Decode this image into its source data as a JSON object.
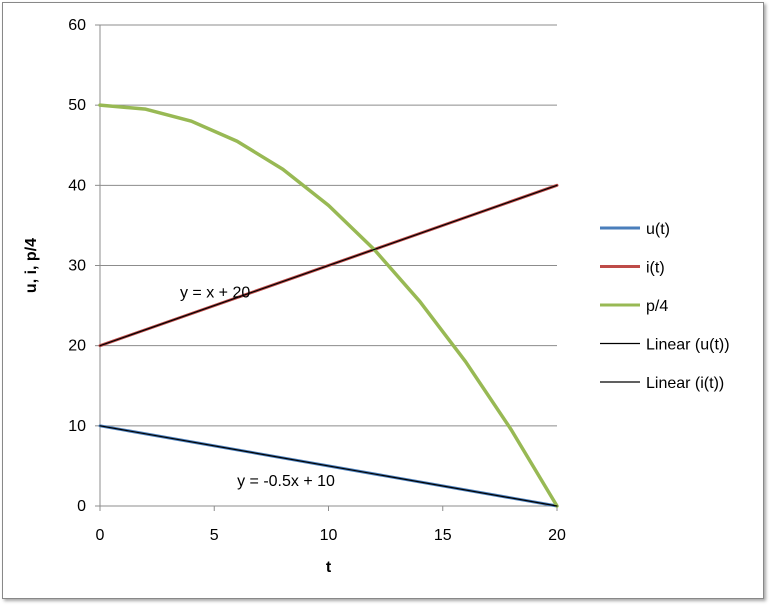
{
  "chart_data": {
    "type": "line",
    "xlabel": "t",
    "ylabel": "u, i, p/4",
    "xlim": [
      0,
      20
    ],
    "ylim": [
      0,
      60
    ],
    "x_ticks": [
      "0",
      "5",
      "10",
      "15",
      "20"
    ],
    "y_ticks": [
      "0",
      "10",
      "20",
      "30",
      "40",
      "50",
      "60"
    ],
    "grid": "horizontal major gridlines",
    "legend_position": "right",
    "series": [
      {
        "name": "u(t)",
        "color": "#4a7ebb",
        "x": [
          0,
          20
        ],
        "y": [
          10,
          0
        ]
      },
      {
        "name": "i(t)",
        "color": "#be4b48",
        "x": [
          0,
          20
        ],
        "y": [
          20,
          40
        ]
      },
      {
        "name": "p/4",
        "color": "#98b954",
        "x": [
          0,
          2,
          4,
          6,
          8,
          10,
          12,
          14,
          16,
          18,
          20
        ],
        "y": [
          50,
          49.5,
          48,
          45.5,
          42,
          37.5,
          32,
          25.5,
          18,
          9.5,
          0
        ]
      },
      {
        "name": "Linear (u(t))",
        "color": "#000000",
        "x": [
          0,
          20
        ],
        "y": [
          10,
          0
        ]
      },
      {
        "name": "Linear (i(t))",
        "color": "#000000",
        "x": [
          0,
          20
        ],
        "y": [
          20,
          40
        ]
      }
    ],
    "annotations": [
      {
        "text": "y = x + 20",
        "x": 3.5,
        "y": 26
      },
      {
        "text": "y = -0.5x + 10",
        "x": 6,
        "y": 2.5
      }
    ]
  }
}
